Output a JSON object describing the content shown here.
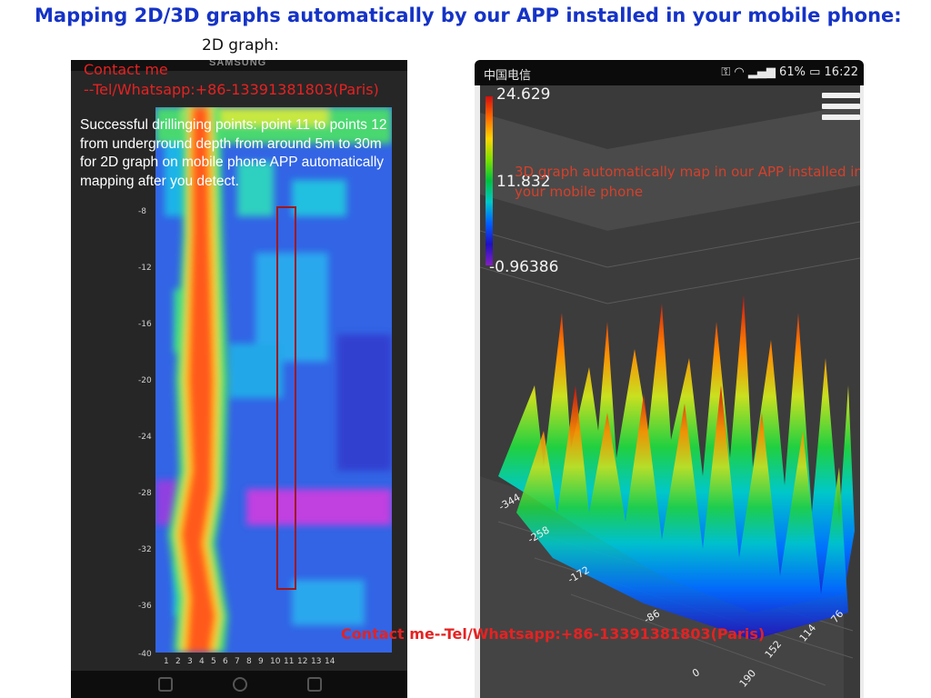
{
  "headline": "Mapping 2D/3D graphs automatically by our APP installed in your mobile phone:",
  "graph2d": {
    "title": "2D graph:",
    "brand": "SAMSUNG",
    "contact_line1": "Contact me",
    "contact_line2": "--Tel/Whatsapp:+86-13391381803(Paris)",
    "description": "Successful drillinging points: point 11 to points 12 from underground depth from around 5m to 30m for 2D graph on mobile phone APP automatically mapping after you detect.",
    "y_ticks": [
      "-8",
      "-12",
      "-16",
      "-20",
      "-24",
      "-28",
      "-32",
      "-36",
      "-40"
    ],
    "x_ticks": [
      "1",
      "2",
      "3",
      "4",
      "5",
      "6",
      "7",
      "8",
      "9",
      "10",
      "11",
      "12",
      "13",
      "14"
    ]
  },
  "graph3d": {
    "status_carrier": "中国电信",
    "status_battery": "61%",
    "status_time": "16:22",
    "colorbar_max": "24.629",
    "colorbar_mid": "11.832",
    "colorbar_min": "-0.96386",
    "description": "3D graph automatically map in our APP installed in your mobile phone",
    "axis_left_ticks": [
      "-344",
      "-258",
      "-172",
      "-86",
      "0"
    ],
    "axis_right_ticks": [
      "190",
      "152",
      "114",
      "76"
    ]
  },
  "contact_bottom": "Contact me--Tel/Whatsapp:+86-13391381803(Paris)",
  "colors": {
    "headline": "#1533c6",
    "contact": "#e52222",
    "desc3d": "#d6402a"
  },
  "icons": [
    "menu-icon",
    "wifi-icon",
    "signal-icon",
    "battery-icon",
    "key-icon"
  ]
}
